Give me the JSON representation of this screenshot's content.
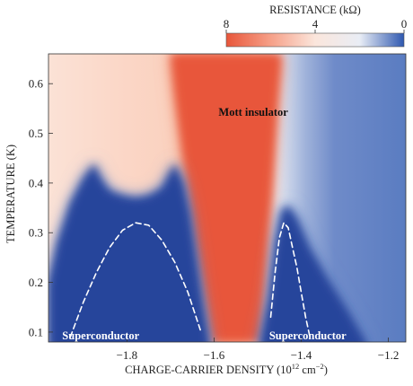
{
  "chart_data": {
    "type": "heatmap",
    "xlabel": "CHARGE-CARRIER DENSITY (10",
    "xlabel_sup": "12",
    "xlabel_unit": " cm",
    "xlabel_unit_sup": "−2",
    "xlabel_close": ")",
    "ylabel": "TEMPERATURE (K)",
    "xlim": [
      -1.98,
      -1.16
    ],
    "ylim": [
      0.08,
      0.66
    ],
    "x_ticks": [
      -1.8,
      -1.6,
      -1.4,
      -1.2
    ],
    "x_tick_labels": [
      "−1.8",
      "−1.6",
      "−1.4",
      "−1.2"
    ],
    "y_ticks": [
      0.1,
      0.2,
      0.3,
      0.4,
      0.5,
      0.6
    ],
    "y_tick_labels": [
      "0.1",
      "0.2",
      "0.3",
      "0.4",
      "0.5",
      "0.6"
    ],
    "colorbar": {
      "title": "RESISTANCE (kΩ)",
      "range": [
        8,
        0
      ],
      "ticks": [
        8,
        4,
        0
      ],
      "tick_labels": [
        "8",
        "4",
        "0"
      ],
      "colors": [
        "#e8563a",
        "#f6a088",
        "#fbe6dc",
        "#e9edf5",
        "#2f58b0"
      ]
    },
    "annotations": [
      {
        "text": "Mott insulator",
        "x": -1.51,
        "y": 0.535
      },
      {
        "text": "Superconductor",
        "x": -1.86,
        "y": 0.085
      },
      {
        "text": "Superconductor",
        "x": -1.385,
        "y": 0.085
      }
    ],
    "dashed_curves": [
      {
        "x": [
          -1.93,
          -1.9,
          -1.87,
          -1.84,
          -1.81,
          -1.78,
          -1.75,
          -1.72,
          -1.69,
          -1.66,
          -1.63
        ],
        "y": [
          0.09,
          0.16,
          0.22,
          0.27,
          0.305,
          0.32,
          0.315,
          0.285,
          0.24,
          0.18,
          0.1
        ]
      },
      {
        "x": [
          -1.47,
          -1.46,
          -1.45,
          -1.44,
          -1.43,
          -1.42,
          -1.41,
          -1.4,
          -1.39,
          -1.38
        ],
        "y": [
          0.13,
          0.22,
          0.29,
          0.32,
          0.31,
          0.27,
          0.23,
          0.18,
          0.13,
          0.09
        ]
      }
    ],
    "domes": [
      {
        "x": [
          -1.98,
          -1.96,
          -1.93,
          -1.9,
          -1.875,
          -1.86,
          -1.84,
          -1.81,
          -1.78,
          -1.75,
          -1.72,
          -1.7,
          -1.69,
          -1.67,
          -1.655,
          -1.64,
          -1.625,
          -1.61
        ],
        "y": [
          0.2,
          0.28,
          0.36,
          0.41,
          0.44,
          0.41,
          0.385,
          0.375,
          0.37,
          0.375,
          0.39,
          0.425,
          0.44,
          0.4,
          0.34,
          0.25,
          0.16,
          0.08
        ]
      },
      {
        "x": [
          -1.495,
          -1.475,
          -1.46,
          -1.445,
          -1.43,
          -1.41,
          -1.38,
          -1.34,
          -1.29,
          -1.25
        ],
        "y": [
          0.08,
          0.17,
          0.28,
          0.345,
          0.355,
          0.33,
          0.27,
          0.21,
          0.14,
          0.08
        ]
      }
    ],
    "mott_region": {
      "left": {
        "x": [
          -1.7,
          -1.69,
          -1.675,
          -1.66,
          -1.645,
          -1.625,
          -1.605
        ],
        "y": [
          0.66,
          0.58,
          0.48,
          0.38,
          0.28,
          0.18,
          0.08
        ]
      },
      "right": {
        "x": [
          -1.445,
          -1.455,
          -1.465,
          -1.475,
          -1.485,
          -1.495
        ],
        "y": [
          0.66,
          0.55,
          0.42,
          0.3,
          0.18,
          0.08
        ]
      }
    },
    "grid": false,
    "legend": "colorbar top-right"
  }
}
